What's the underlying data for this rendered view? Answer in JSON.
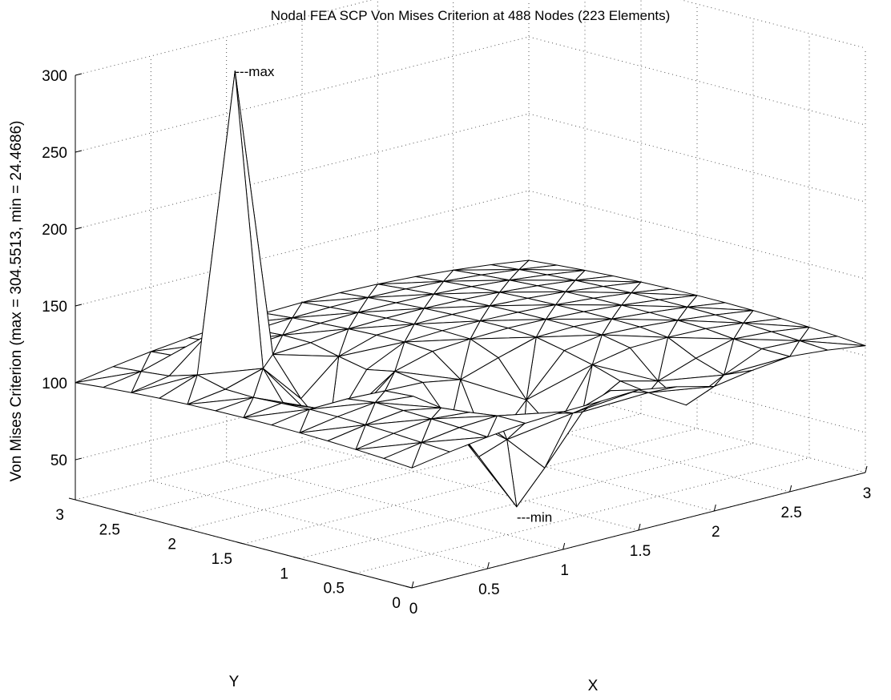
{
  "chart_data": {
    "type": "surface-mesh",
    "title": "Nodal FEA SCP Von Mises Criterion at 488 Nodes (223 Elements)",
    "xlabel": "X",
    "ylabel": "Y",
    "zlabel": "Von Mises Criterion  (max = 304.5513, min = 24.4686)",
    "xlim": [
      0,
      3
    ],
    "ylim": [
      0,
      3
    ],
    "zlim": [
      24,
      300
    ],
    "x_ticks": [
      "0",
      "0.5",
      "1",
      "1.5",
      "2",
      "2.5",
      "3"
    ],
    "y_ticks": [
      "0",
      "0.5",
      "1",
      "1.5",
      "2",
      "2.5",
      "3"
    ],
    "z_ticks": [
      "50",
      "100",
      "150",
      "200",
      "250",
      "300"
    ],
    "grid": true,
    "max_value": 304.5513,
    "min_value": 24.4686,
    "annotations": [
      {
        "text": "---max",
        "x": 0.5,
        "y": 2.25,
        "z": 304.5513
      },
      {
        "text": "---min",
        "x": 1.25,
        "y": 0.75,
        "z": 24.4686
      }
    ],
    "mesh_colors": {
      "line": "#000000",
      "face": "#ffffff",
      "grid": "#555555"
    }
  }
}
